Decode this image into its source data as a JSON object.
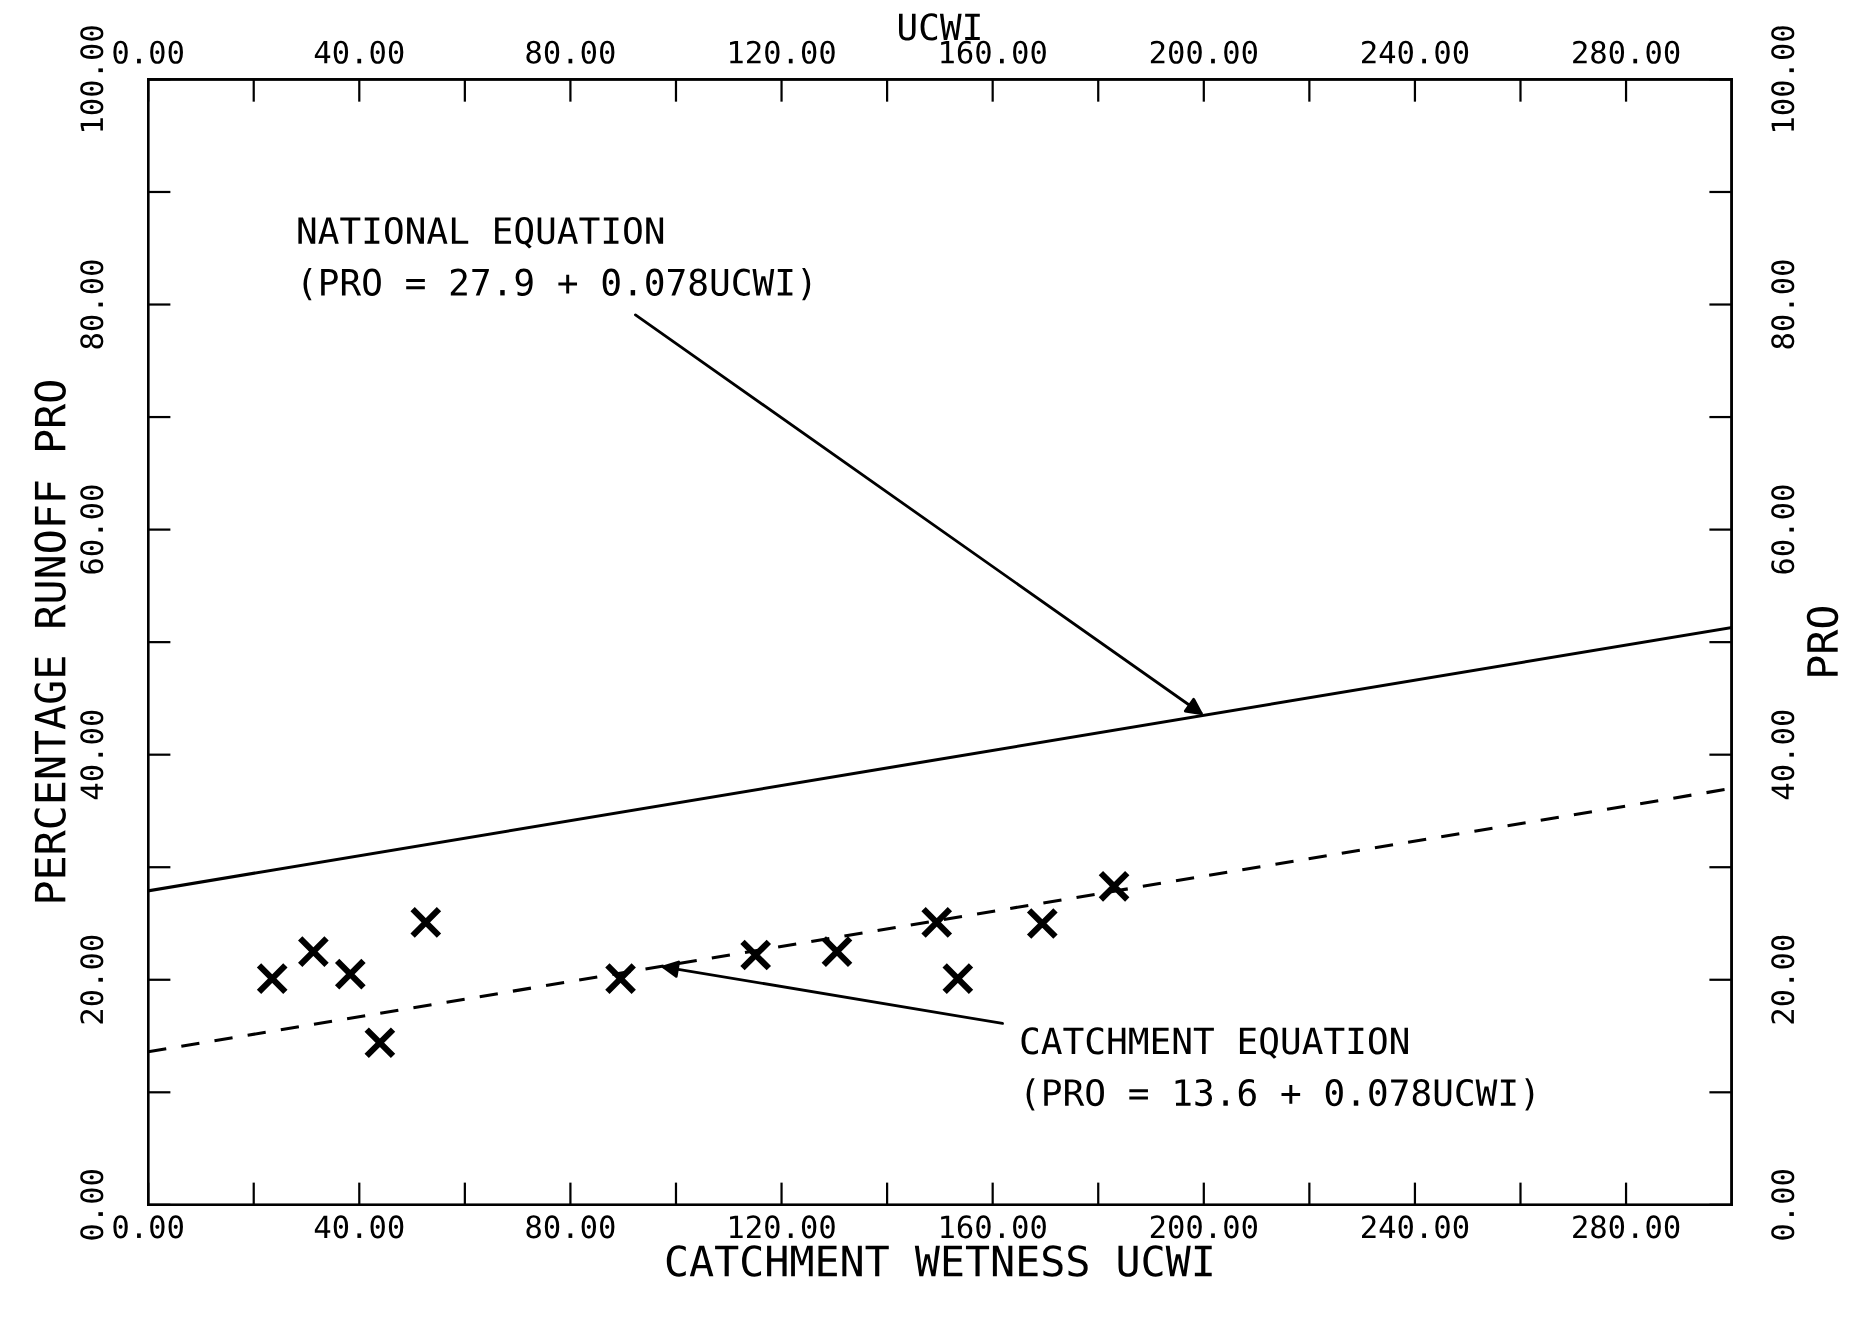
{
  "chart_data": {
    "type": "scatter",
    "xlabel": "CATCHMENT WETNESS UCWI",
    "ylabel": "PERCENTAGE RUNOFF PRO",
    "x2label": "UCWI",
    "y2label": "PRO",
    "xlim": [
      0,
      300
    ],
    "ylim": [
      0,
      100
    ],
    "x2lim": [
      0,
      300
    ],
    "y2lim": [
      0,
      100
    ],
    "xticks": [
      {
        "value": 0,
        "label": "0.00"
      },
      {
        "value": 20,
        "label": null
      },
      {
        "value": 40,
        "label": "40.00"
      },
      {
        "value": 60,
        "label": null
      },
      {
        "value": 80,
        "label": "80.00"
      },
      {
        "value": 100,
        "label": null
      },
      {
        "value": 120,
        "label": "120.00"
      },
      {
        "value": 140,
        "label": null
      },
      {
        "value": 160,
        "label": "160.00"
      },
      {
        "value": 180,
        "label": null
      },
      {
        "value": 200,
        "label": "200.00"
      },
      {
        "value": 220,
        "label": null
      },
      {
        "value": 240,
        "label": "240.00"
      },
      {
        "value": 260,
        "label": null
      },
      {
        "value": 280,
        "label": "280.00"
      }
    ],
    "x2ticks": [
      {
        "value": 0,
        "label": "0.00"
      },
      {
        "value": 20,
        "label": null
      },
      {
        "value": 40,
        "label": "40.00"
      },
      {
        "value": 60,
        "label": null
      },
      {
        "value": 80,
        "label": "80.00"
      },
      {
        "value": 100,
        "label": null
      },
      {
        "value": 120,
        "label": "120.00"
      },
      {
        "value": 140,
        "label": null
      },
      {
        "value": 160,
        "label": "160.00"
      },
      {
        "value": 180,
        "label": null
      },
      {
        "value": 200,
        "label": "200.00"
      },
      {
        "value": 220,
        "label": null
      },
      {
        "value": 240,
        "label": "240.00"
      },
      {
        "value": 260,
        "label": null
      },
      {
        "value": 280,
        "label": "280.00"
      }
    ],
    "yticks": [
      {
        "value": 0,
        "label": "0.00"
      },
      {
        "value": 10,
        "label": null
      },
      {
        "value": 20,
        "label": "20.00"
      },
      {
        "value": 30,
        "label": null
      },
      {
        "value": 40,
        "label": "40.00"
      },
      {
        "value": 50,
        "label": null
      },
      {
        "value": 60,
        "label": "60.00"
      },
      {
        "value": 70,
        "label": null
      },
      {
        "value": 80,
        "label": "80.00"
      },
      {
        "value": 90,
        "label": null
      },
      {
        "value": 100,
        "label": "100.00"
      }
    ],
    "y2ticks": [
      {
        "value": 0,
        "label": "0.00"
      },
      {
        "value": 10,
        "label": null
      },
      {
        "value": 20,
        "label": "20.00"
      },
      {
        "value": 30,
        "label": null
      },
      {
        "value": 40,
        "label": "40.00"
      },
      {
        "value": 50,
        "label": null
      },
      {
        "value": 60,
        "label": "60.00"
      },
      {
        "value": 70,
        "label": null
      },
      {
        "value": 80,
        "label": "80.00"
      },
      {
        "value": 90,
        "label": null
      },
      {
        "value": 100,
        "label": "100.00"
      }
    ],
    "grid": false,
    "series": [
      {
        "color": "#000000",
        "marker": "cross",
        "x": [
          23.5,
          31.3,
          38.3,
          43.9,
          52.6,
          89.5,
          115.1,
          130.5,
          149.4,
          153.4,
          169.4,
          183
        ],
        "values": [
          20.1,
          22.5,
          20.5,
          14.4,
          25.1,
          20.1,
          22.2,
          22.5,
          25.1,
          20.1,
          25.0,
          28.3
        ]
      },
      {
        "type": "line",
        "color": "#000000",
        "marker": "none",
        "line_style": "solid",
        "x": [
          0,
          300
        ],
        "values": [
          27.9,
          51.3
        ]
      },
      {
        "type": "line",
        "color": "#000000",
        "marker": "none",
        "line_style": "dashed",
        "x": [
          0,
          300
        ],
        "values": [
          13.6,
          37.0
        ]
      }
    ],
    "annotations": [
      {
        "text": "NATIONAL EQUATION\n(PRO = 27.9 + 0.078UCWI)",
        "x": 200,
        "y": 43.5
      },
      {
        "text": "CATCHMENT EQUATION\n(PRO = 13.6 + 0.078UCWI)",
        "x": 97,
        "y": 21.2
      }
    ]
  }
}
